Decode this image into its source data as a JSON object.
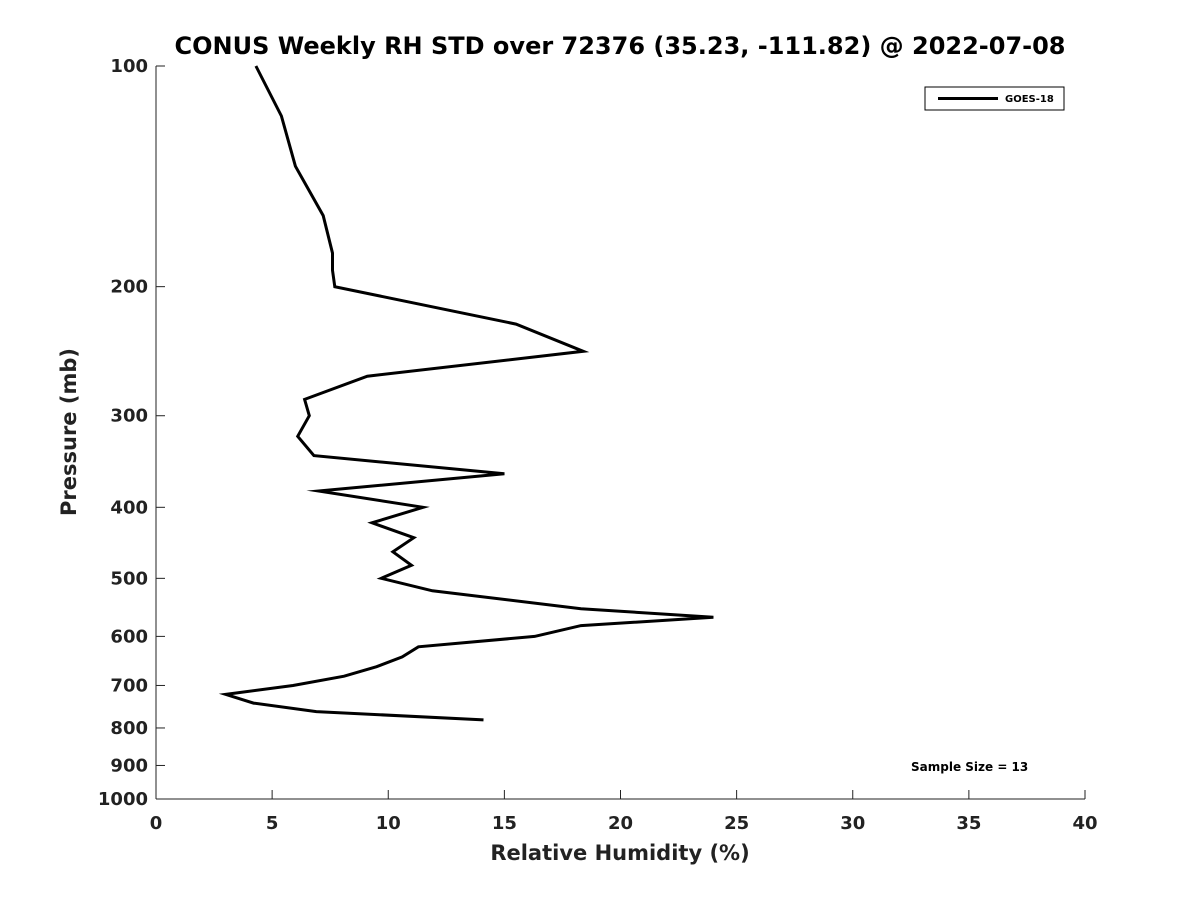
{
  "chart_data": {
    "type": "line",
    "title": "CONUS Weekly RH STD over 72376 (35.23, -111.82) @ 2022-07-08",
    "xlabel": "Relative Humidity (%)",
    "ylabel": "Pressure (mb)",
    "xlim": [
      0,
      40
    ],
    "ylim": [
      100,
      1000
    ],
    "yscale": "log",
    "y_reversed": true,
    "grid": false,
    "x_ticks": [
      0,
      5,
      10,
      15,
      20,
      25,
      30,
      35,
      40
    ],
    "x_tick_labels": [
      "0",
      "5",
      "10",
      "15",
      "20",
      "25",
      "30",
      "35",
      "40"
    ],
    "y_ticks": [
      100,
      200,
      300,
      400,
      500,
      600,
      700,
      800,
      900,
      1000
    ],
    "y_tick_labels": [
      "100",
      "200",
      "300",
      "400",
      "500",
      "600",
      "700",
      "800",
      "900",
      "1000"
    ],
    "legend": {
      "position": "top-right",
      "entries": [
        "GOES-18"
      ]
    },
    "annotation": "Sample Size = 13",
    "series": [
      {
        "name": "GOES-18",
        "color": "#000000",
        "x": [
          4.3,
          5.4,
          6.0,
          7.2,
          7.6,
          7.6,
          7.7,
          15.5,
          18.4,
          9.1,
          6.4,
          6.6,
          6.1,
          6.8,
          15.0,
          7.0,
          11.5,
          9.3,
          11.1,
          10.2,
          11.0,
          9.7,
          11.9,
          18.3,
          24.0,
          18.3,
          16.3,
          11.3,
          10.6,
          9.5,
          8.1,
          5.9,
          3.0,
          4.2,
          6.9,
          14.1
        ],
        "y": [
          100,
          117,
          137,
          160,
          180,
          190,
          200,
          225,
          245,
          265,
          285,
          300,
          320,
          340,
          360,
          380,
          400,
          420,
          440,
          460,
          480,
          500,
          520,
          550,
          565,
          580,
          600,
          620,
          640,
          660,
          680,
          700,
          720,
          740,
          760,
          780
        ]
      }
    ]
  }
}
